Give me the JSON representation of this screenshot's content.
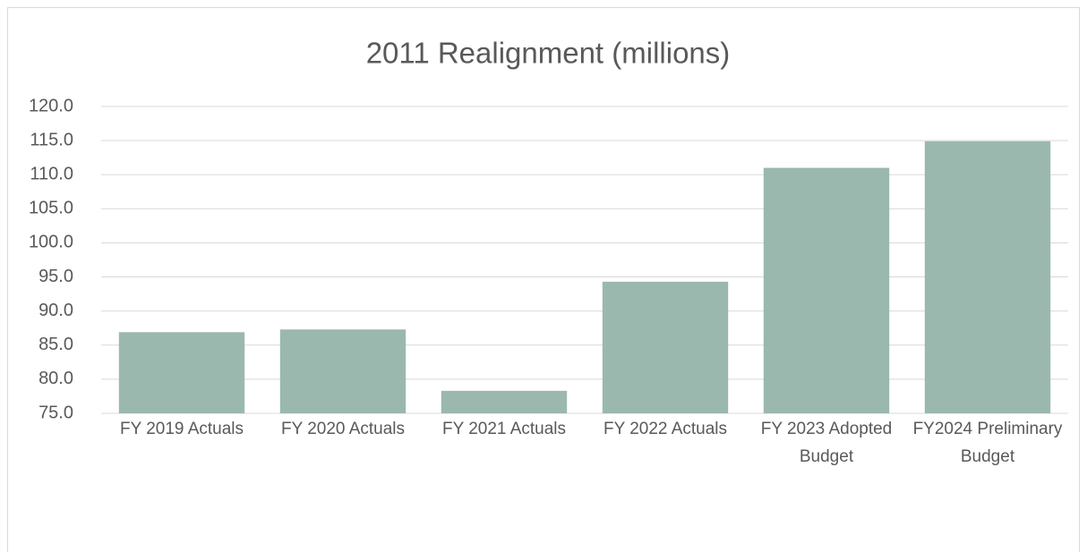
{
  "chart_data": {
    "type": "bar",
    "title": "2011 Realignment (millions)",
    "categories": [
      "FY 2019 Actuals",
      "FY 2020 Actuals",
      "FY 2021 Actuals",
      "FY 2022 Actuals",
      "FY 2023 Adopted Budget",
      "FY2024 Preliminary Budget"
    ],
    "values": [
      86.9,
      87.3,
      78.3,
      94.3,
      111.0,
      114.9
    ],
    "color": "#9bb8ae",
    "ylim": [
      75,
      120
    ],
    "yticks": [
      {
        "value": 75,
        "label": "75.0"
      },
      {
        "value": 80,
        "label": "80.0"
      },
      {
        "value": 85,
        "label": "85.0"
      },
      {
        "value": 90,
        "label": "90.0"
      },
      {
        "value": 95,
        "label": "95.0"
      },
      {
        "value": 100,
        "label": "100.0"
      },
      {
        "value": 105,
        "label": "105.0"
      },
      {
        "value": 110,
        "label": "110.0"
      },
      {
        "value": 115,
        "label": "115.0"
      },
      {
        "value": 120,
        "label": "120.0"
      }
    ],
    "grid": true
  }
}
